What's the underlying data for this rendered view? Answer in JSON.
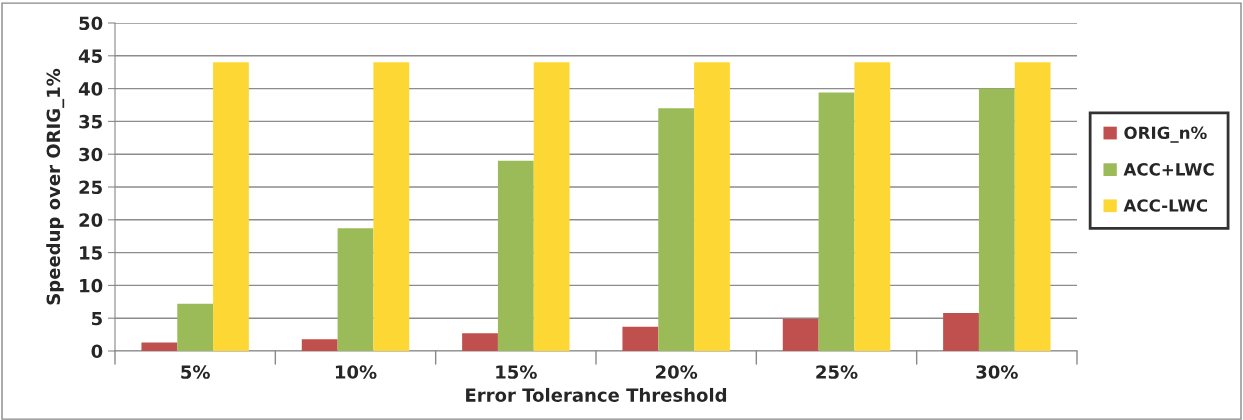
{
  "chart_data": {
    "type": "bar",
    "xlabel": "Error Tolerance Threshold",
    "ylabel": "Speedup over ORIG_1%",
    "categories": [
      "5%",
      "10%",
      "15%",
      "20%",
      "25%",
      "30%"
    ],
    "series": [
      {
        "name": "ORIG_n%",
        "color": "#c0504d",
        "values": [
          1.3,
          1.8,
          2.7,
          3.7,
          4.9,
          5.8
        ]
      },
      {
        "name": "ACC+LWC",
        "color": "#9bbb59",
        "values": [
          7.2,
          18.7,
          29,
          37,
          39.4,
          40
        ]
      },
      {
        "name": "ACC-LWC",
        "color": "#fdd835",
        "values": [
          44,
          44,
          44,
          44,
          44,
          44
        ]
      }
    ],
    "ylim": [
      0,
      50
    ],
    "yticks": [
      0,
      5,
      10,
      15,
      20,
      25,
      30,
      35,
      40,
      45,
      50
    ],
    "grid": "y",
    "legend": "right"
  }
}
